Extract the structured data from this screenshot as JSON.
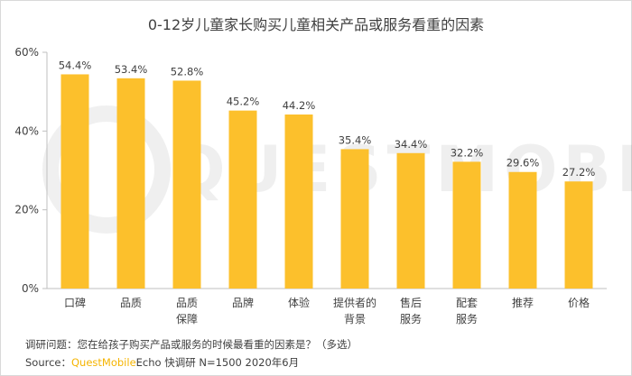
{
  "title": "0-12岁儿童家长购买儿童相关产品或服务看重的因素",
  "watermark": "QUESTMOBILE",
  "chart_data": {
    "type": "bar",
    "categories": [
      "口碑",
      "品质",
      "品质\n保障",
      "品牌",
      "体验",
      "提供者的\n背景",
      "售后\n服务",
      "配套\n服务",
      "推荐",
      "价格"
    ],
    "values": [
      54.4,
      53.4,
      52.8,
      45.2,
      44.2,
      35.4,
      34.4,
      32.2,
      29.6,
      27.2
    ],
    "data_labels": [
      "54.4%",
      "53.4%",
      "52.8%",
      "45.2%",
      "44.2%",
      "35.4%",
      "34.4%",
      "32.2%",
      "29.6%",
      "27.2%"
    ],
    "y_ticks": [
      0,
      20,
      40,
      60
    ],
    "y_tick_labels": [
      "0%",
      "20%",
      "40%",
      "60%"
    ],
    "ylim": [
      0,
      60
    ],
    "bar_color": "#fcc02c",
    "grid": false
  },
  "notes": {
    "question": "调研问题：您在给孩子购买产品或服务的时候最看重的因素是？（多选）",
    "source_prefix": "Source：",
    "source_brand": "QuestMobile",
    "source_rest": "Echo 快调研 N=1500 2020年6月"
  }
}
